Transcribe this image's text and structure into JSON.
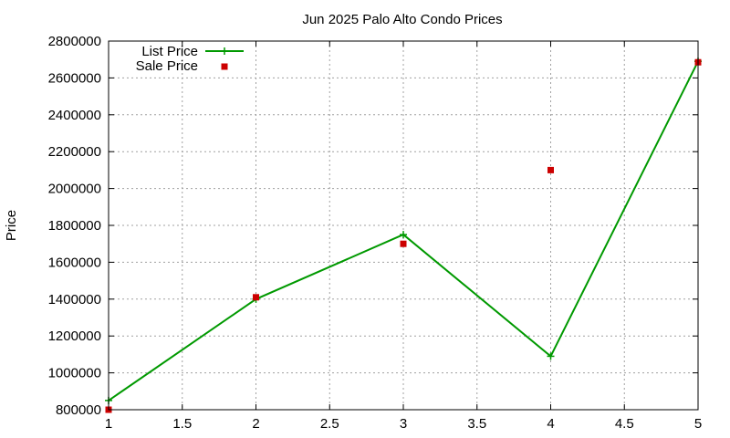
{
  "chart_data": {
    "type": "line",
    "title": "Jun 2025 Palo Alto Condo Prices",
    "xlabel": "",
    "ylabel": "Price",
    "xlim": [
      1,
      5
    ],
    "ylim": [
      800000,
      2800000
    ],
    "x_ticks": [
      1,
      1.5,
      2,
      2.5,
      3,
      3.5,
      4,
      4.5,
      5
    ],
    "x_tick_labels": [
      "1",
      "1.5",
      "2",
      "2.5",
      "3",
      "3.5",
      "4",
      "4.5",
      "5"
    ],
    "y_ticks": [
      800000,
      1000000,
      1200000,
      1400000,
      1600000,
      1800000,
      2000000,
      2200000,
      2400000,
      2600000,
      2800000
    ],
    "y_tick_labels": [
      "800000",
      "1000000",
      "1200000",
      "1400000",
      "1600000",
      "1800000",
      "2000000",
      "2200000",
      "2400000",
      "2600000",
      "2800000"
    ],
    "grid": true,
    "legend_position": "top-left",
    "series": [
      {
        "name": "List Price",
        "style": "linespoints",
        "marker": "plus",
        "color": "#009900",
        "x": [
          1,
          2,
          3,
          4,
          5
        ],
        "y": [
          850000,
          1400000,
          1750000,
          1090000,
          2690000
        ]
      },
      {
        "name": "Sale Price",
        "style": "points",
        "marker": "square",
        "color": "#cc0000",
        "x": [
          1,
          2,
          3,
          4,
          5
        ],
        "y": [
          800000,
          1410000,
          1700000,
          2100000,
          2685000
        ]
      }
    ]
  }
}
